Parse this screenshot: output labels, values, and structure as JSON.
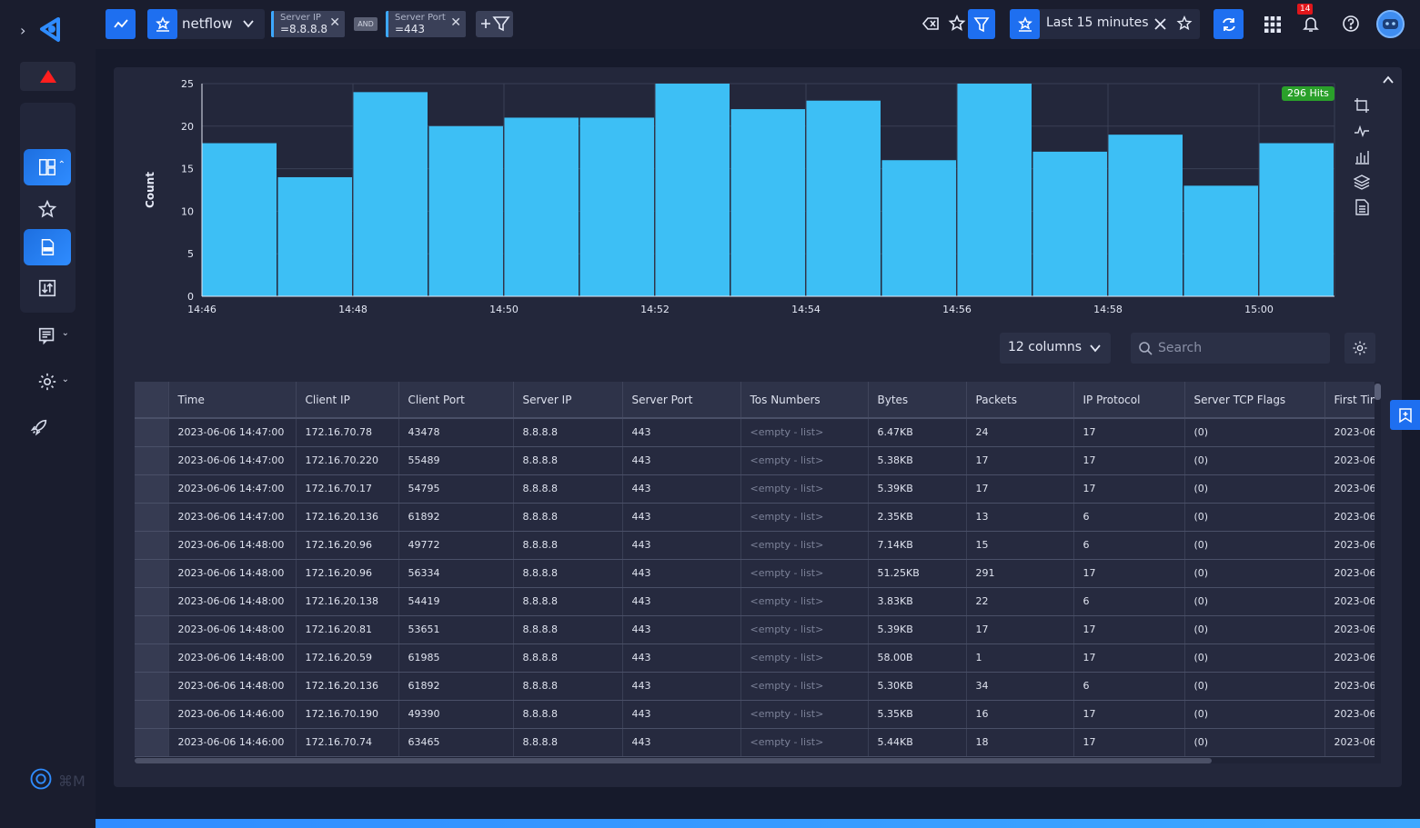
{
  "topbar": {
    "index_name": "netflow",
    "filters": [
      {
        "label": "Server IP",
        "value": "=8.8.8.8"
      },
      {
        "label": "Server Port",
        "value": "=443"
      }
    ],
    "operator": "AND",
    "time_range": "Last 15 minutes",
    "notification_count": "14"
  },
  "chart": {
    "hits_badge": "296 Hits",
    "ylabel": "Count"
  },
  "chart_data": {
    "type": "bar",
    "title": "",
    "xlabel": "",
    "ylabel": "Count",
    "ylim": [
      0,
      25
    ],
    "yticks": [
      0,
      5,
      10,
      15,
      20,
      25
    ],
    "xticks": [
      "14:46",
      "14:48",
      "14:50",
      "14:52",
      "14:54",
      "14:56",
      "14:58",
      "15:00"
    ],
    "categories": [
      "14:46",
      "14:47",
      "14:48",
      "14:49",
      "14:50",
      "14:51",
      "14:52",
      "14:53",
      "14:54",
      "14:55",
      "14:56",
      "14:57",
      "14:58",
      "14:59",
      "15:00"
    ],
    "values": [
      18,
      14,
      24,
      20,
      21,
      21,
      25,
      22,
      23,
      16,
      25,
      17,
      19,
      13,
      18
    ],
    "bar_color": "#3dbff5",
    "grid": true
  },
  "controls": {
    "columns_label": "12 columns",
    "search_placeholder": "Search"
  },
  "table": {
    "columns": [
      "Time",
      "Client IP",
      "Client Port",
      "Server IP",
      "Server Port",
      "Tos Numbers",
      "Bytes",
      "Packets",
      "IP Protocol",
      "Server TCP Flags",
      "First Time"
    ],
    "rows": [
      [
        "2023-06-06 14:47:00",
        "172.16.70.78",
        "43478",
        "8.8.8.8",
        "443",
        "<empty - list>",
        "6.47KB",
        "24",
        "17",
        "(0)",
        "2023-06"
      ],
      [
        "2023-06-06 14:47:00",
        "172.16.70.220",
        "55489",
        "8.8.8.8",
        "443",
        "<empty - list>",
        "5.38KB",
        "17",
        "17",
        "(0)",
        "2023-06"
      ],
      [
        "2023-06-06 14:47:00",
        "172.16.70.17",
        "54795",
        "8.8.8.8",
        "443",
        "<empty - list>",
        "5.39KB",
        "17",
        "17",
        "(0)",
        "2023-06"
      ],
      [
        "2023-06-06 14:47:00",
        "172.16.20.136",
        "61892",
        "8.8.8.8",
        "443",
        "<empty - list>",
        "2.35KB",
        "13",
        "6",
        "(0)",
        "2023-06"
      ],
      [
        "2023-06-06 14:48:00",
        "172.16.20.96",
        "49772",
        "8.8.8.8",
        "443",
        "<empty - list>",
        "7.14KB",
        "15",
        "6",
        "(0)",
        "2023-06"
      ],
      [
        "2023-06-06 14:48:00",
        "172.16.20.96",
        "56334",
        "8.8.8.8",
        "443",
        "<empty - list>",
        "51.25KB",
        "291",
        "17",
        "(0)",
        "2023-06"
      ],
      [
        "2023-06-06 14:48:00",
        "172.16.20.138",
        "54419",
        "8.8.8.8",
        "443",
        "<empty - list>",
        "3.83KB",
        "22",
        "6",
        "(0)",
        "2023-06"
      ],
      [
        "2023-06-06 14:48:00",
        "172.16.20.81",
        "53651",
        "8.8.8.8",
        "443",
        "<empty - list>",
        "5.39KB",
        "17",
        "17",
        "(0)",
        "2023-06"
      ],
      [
        "2023-06-06 14:48:00",
        "172.16.20.59",
        "61985",
        "8.8.8.8",
        "443",
        "<empty - list>",
        "58.00B",
        "1",
        "17",
        "(0)",
        "2023-06"
      ],
      [
        "2023-06-06 14:48:00",
        "172.16.20.136",
        "61892",
        "8.8.8.8",
        "443",
        "<empty - list>",
        "5.30KB",
        "34",
        "6",
        "(0)",
        "2023-06"
      ],
      [
        "2023-06-06 14:46:00",
        "172.16.70.190",
        "49390",
        "8.8.8.8",
        "443",
        "<empty - list>",
        "5.35KB",
        "16",
        "17",
        "(0)",
        "2023-06"
      ],
      [
        "2023-06-06 14:46:00",
        "172.16.70.74",
        "63465",
        "8.8.8.8",
        "443",
        "<empty - list>",
        "5.44KB",
        "18",
        "17",
        "(0)",
        "2023-06"
      ]
    ]
  },
  "footer": {
    "shortcut": "⌘M"
  }
}
